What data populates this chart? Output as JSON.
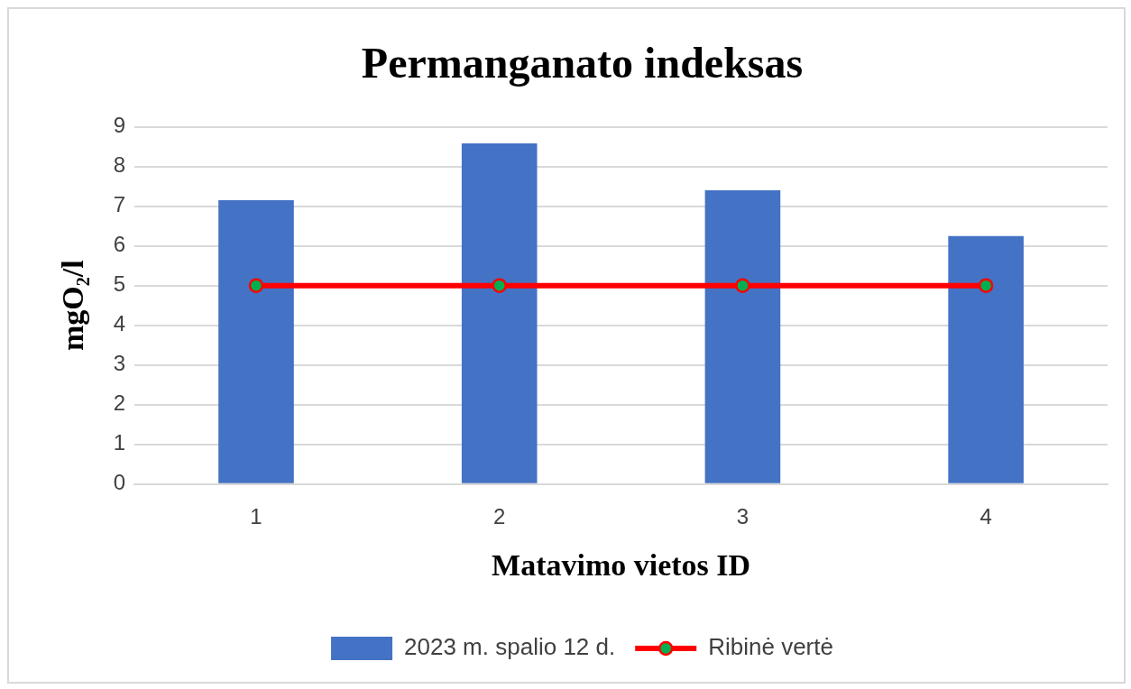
{
  "chart_data": {
    "type": "bar",
    "title": "Permanganato indeksas",
    "xlabel": "Matavimo vietos ID",
    "ylabel": "mgO₂/l",
    "categories": [
      "1",
      "2",
      "3",
      "4"
    ],
    "series": [
      {
        "name": "2023 m. spalio 12 d.",
        "color": "#4472c4",
        "values": [
          7.15,
          8.58,
          7.4,
          6.25
        ]
      },
      {
        "name": "Ribinė vertė",
        "type": "line",
        "color": "#ff0000",
        "colors": [
          "#00b050",
          "#00b050",
          "#00b050",
          "#00b050"
        ],
        "values": [
          5,
          5,
          5,
          5
        ]
      }
    ],
    "ylim": [
      0,
      9
    ],
    "yticks": [
      0,
      1,
      2,
      3,
      4,
      5,
      6,
      7,
      8,
      9
    ],
    "grid": "y",
    "legend": "bottom",
    "marker": "circle"
  }
}
